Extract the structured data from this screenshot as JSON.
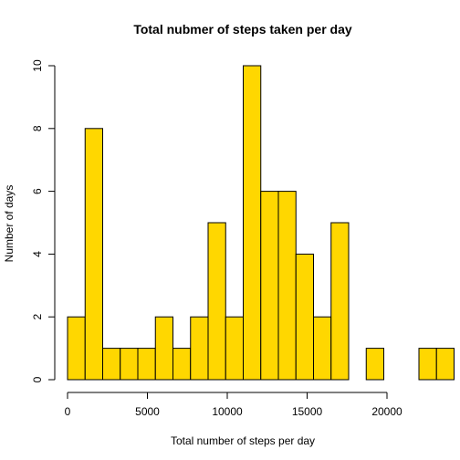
{
  "chart_data": {
    "type": "bar",
    "title": "Total nubmer of steps taken per day",
    "xlabel": "Total number of steps per day",
    "ylabel": "Number of days",
    "bar_color": "#FFD700",
    "bin_width": 1100,
    "x_start": 0,
    "values": [
      2,
      8,
      1,
      1,
      1,
      2,
      1,
      2,
      5,
      2,
      10,
      6,
      6,
      4,
      2,
      5,
      0,
      1,
      0,
      0,
      1,
      1
    ],
    "xlim": [
      0,
      22000
    ],
    "ylim": [
      0,
      10
    ],
    "x_ticks": [
      0,
      5000,
      10000,
      15000,
      20000
    ],
    "y_ticks": [
      0,
      2,
      4,
      6,
      8,
      10
    ],
    "grid": false,
    "legend": "none"
  }
}
